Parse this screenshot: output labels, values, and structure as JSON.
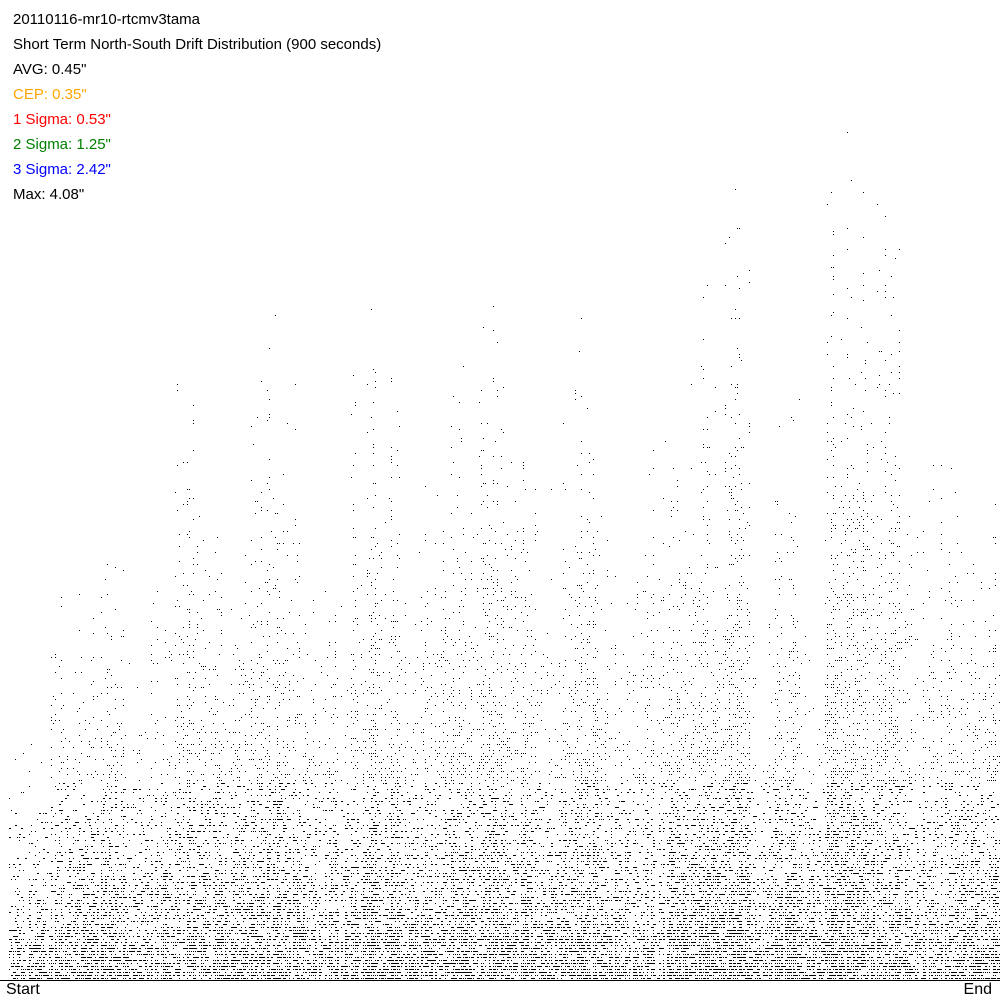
{
  "chart_data": {
    "type": "scatter",
    "title": "20110116-mr10-rtcmv3tama",
    "subtitle": "Short Term North-South Drift Distribution (900 seconds)",
    "stats": [
      {
        "label": "AVG: 0.45\"",
        "color": "#000000"
      },
      {
        "label": "CEP: 0.35\"",
        "color": "#ffa500"
      },
      {
        "label": "1 Sigma: 0.53\"",
        "color": "#ff0000"
      },
      {
        "label": "2 Sigma: 1.25\"",
        "color": "#008000"
      },
      {
        "label": "3 Sigma: 2.42\"",
        "color": "#0000ff"
      },
      {
        "label": "Max: 4.08\"",
        "color": "#000000"
      }
    ],
    "x_labels": {
      "start": "Start",
      "end": "End"
    },
    "ylim": [
      0,
      4.08
    ],
    "y_unit": "arcsec",
    "point_color": "#000000",
    "segment_peak_drift": [
      1.09,
      1.17,
      1.84,
      2.01,
      2.01,
      1.59,
      1.84,
      2.68,
      2.38,
      2.09,
      2.97,
      3.1,
      2.01,
      2.13,
      3.1,
      3.05,
      2.09,
      2.97,
      2.72,
      3.12,
      2.76,
      2.26,
      2.43,
      3.01,
      2.13,
      2.34,
      2.72,
      2.85,
      3.01,
      3.72,
      1.76,
      3.1,
      1.63,
      3.93,
      4.08,
      3.77,
      2.51,
      2.43,
      2.47,
      2.43
    ]
  }
}
